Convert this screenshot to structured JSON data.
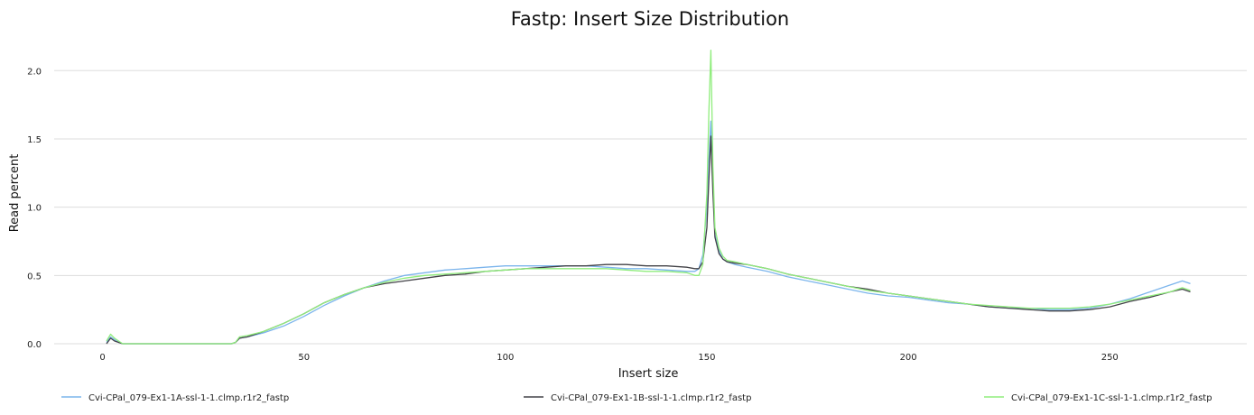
{
  "chart_data": {
    "type": "line",
    "title": "Fastp: Insert Size Distribution",
    "xlabel": "Insert size",
    "ylabel": "Read percent",
    "xlim": [
      -12,
      284
    ],
    "ylim": [
      0,
      2.2
    ],
    "x_ticks": [
      0,
      50,
      100,
      150,
      200,
      250
    ],
    "x_tick_labels": [
      "0",
      "50",
      "100",
      "150",
      "200",
      "250"
    ],
    "y_ticks": [
      0,
      0.5,
      1,
      1.5,
      2
    ],
    "y_tick_labels": [
      "0.0",
      "0.5",
      "1.0",
      "1.5",
      "2.0"
    ],
    "grid": "horizontal",
    "legend_position": "bottom",
    "series": [
      {
        "name": "Cvi-CPal_079-Ex1-1A-ssl-1-1.clmp.r1r2_fastp",
        "color": "#7cb5ec",
        "x": [
          1,
          2,
          3,
          4,
          5,
          6,
          10,
          20,
          30,
          32,
          33,
          34,
          36,
          40,
          45,
          50,
          55,
          60,
          65,
          70,
          75,
          80,
          85,
          90,
          95,
          100,
          105,
          110,
          115,
          120,
          125,
          130,
          135,
          140,
          145,
          147,
          148,
          149,
          150,
          150.5,
          151,
          151.5,
          152,
          153,
          154,
          155,
          157,
          160,
          165,
          170,
          175,
          180,
          185,
          190,
          195,
          200,
          205,
          210,
          215,
          220,
          225,
          230,
          235,
          240,
          245,
          250,
          255,
          260,
          265,
          268,
          270
        ],
        "y": [
          0.01,
          0.05,
          0.03,
          0.01,
          0.0,
          0.0,
          0.0,
          0.0,
          0.0,
          0.0,
          0.01,
          0.04,
          0.05,
          0.08,
          0.13,
          0.2,
          0.28,
          0.35,
          0.41,
          0.46,
          0.5,
          0.52,
          0.54,
          0.55,
          0.56,
          0.57,
          0.57,
          0.57,
          0.57,
          0.57,
          0.56,
          0.55,
          0.55,
          0.54,
          0.53,
          0.53,
          0.55,
          0.65,
          1.0,
          1.35,
          1.63,
          1.2,
          0.8,
          0.68,
          0.62,
          0.6,
          0.58,
          0.56,
          0.53,
          0.49,
          0.46,
          0.43,
          0.4,
          0.37,
          0.35,
          0.34,
          0.32,
          0.3,
          0.29,
          0.27,
          0.26,
          0.26,
          0.25,
          0.25,
          0.26,
          0.29,
          0.33,
          0.38,
          0.43,
          0.46,
          0.44
        ]
      },
      {
        "name": "Cvi-CPal_079-Ex1-1B-ssl-1-1.clmp.r1r2_fastp",
        "color": "#434348",
        "x": [
          1,
          2,
          3,
          4,
          5,
          6,
          10,
          20,
          30,
          32,
          33,
          34,
          36,
          40,
          45,
          50,
          55,
          60,
          65,
          70,
          75,
          80,
          85,
          90,
          95,
          100,
          105,
          110,
          115,
          120,
          125,
          130,
          135,
          140,
          145,
          147,
          148,
          149,
          150,
          150.5,
          151,
          151.5,
          152,
          153,
          154,
          155,
          157,
          160,
          165,
          170,
          175,
          180,
          185,
          190,
          195,
          200,
          205,
          210,
          215,
          220,
          225,
          230,
          235,
          240,
          245,
          250,
          255,
          260,
          265,
          268,
          270
        ],
        "y": [
          0.0,
          0.04,
          0.02,
          0.01,
          0.0,
          0.0,
          0.0,
          0.0,
          0.0,
          0.0,
          0.01,
          0.04,
          0.05,
          0.09,
          0.15,
          0.22,
          0.3,
          0.36,
          0.41,
          0.44,
          0.46,
          0.48,
          0.5,
          0.51,
          0.53,
          0.54,
          0.55,
          0.56,
          0.57,
          0.57,
          0.58,
          0.58,
          0.57,
          0.57,
          0.56,
          0.55,
          0.55,
          0.6,
          0.85,
          1.2,
          1.52,
          1.1,
          0.78,
          0.66,
          0.62,
          0.6,
          0.59,
          0.58,
          0.55,
          0.51,
          0.48,
          0.45,
          0.42,
          0.4,
          0.37,
          0.35,
          0.33,
          0.31,
          0.29,
          0.27,
          0.26,
          0.25,
          0.24,
          0.24,
          0.25,
          0.27,
          0.31,
          0.34,
          0.38,
          0.4,
          0.38
        ]
      },
      {
        "name": "Cvi-CPal_079-Ex1-1C-ssl-1-1.clmp.r1r2_fastp",
        "color": "#90ed7d",
        "x": [
          1,
          2,
          3,
          4,
          5,
          6,
          10,
          20,
          30,
          32,
          33,
          34,
          36,
          40,
          45,
          50,
          55,
          60,
          65,
          70,
          75,
          80,
          85,
          90,
          95,
          100,
          105,
          110,
          115,
          120,
          125,
          130,
          135,
          140,
          145,
          147,
          148,
          149,
          150,
          150.5,
          151,
          151.5,
          152,
          153,
          154,
          155,
          157,
          160,
          165,
          170,
          175,
          180,
          185,
          190,
          195,
          200,
          205,
          210,
          215,
          220,
          225,
          230,
          235,
          240,
          245,
          250,
          255,
          260,
          265,
          268,
          270
        ],
        "y": [
          0.02,
          0.07,
          0.04,
          0.02,
          0.0,
          0.0,
          0.0,
          0.0,
          0.0,
          0.0,
          0.01,
          0.05,
          0.06,
          0.09,
          0.15,
          0.22,
          0.3,
          0.36,
          0.41,
          0.45,
          0.48,
          0.5,
          0.51,
          0.52,
          0.53,
          0.54,
          0.55,
          0.55,
          0.55,
          0.55,
          0.55,
          0.54,
          0.53,
          0.53,
          0.52,
          0.5,
          0.5,
          0.58,
          1.1,
          1.7,
          2.15,
          1.3,
          0.85,
          0.7,
          0.64,
          0.61,
          0.6,
          0.58,
          0.55,
          0.51,
          0.48,
          0.45,
          0.42,
          0.39,
          0.37,
          0.35,
          0.33,
          0.31,
          0.29,
          0.28,
          0.27,
          0.26,
          0.26,
          0.26,
          0.27,
          0.29,
          0.32,
          0.35,
          0.38,
          0.41,
          0.39
        ]
      }
    ]
  }
}
